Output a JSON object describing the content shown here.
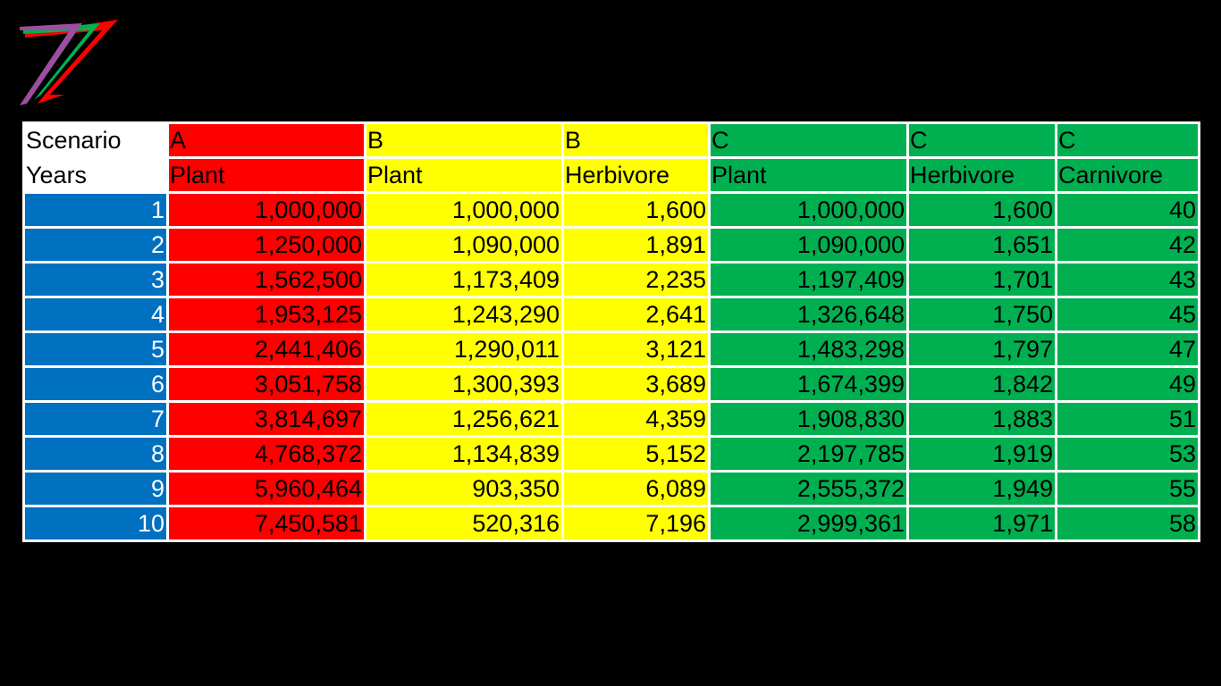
{
  "colors": {
    "year": "#0070c0",
    "A": "#ff0000",
    "B": "#ffff00",
    "C": "#00b050",
    "logo_red": "#ff0000",
    "logo_green": "#00b050",
    "logo_purple": "#9b4fa0"
  },
  "table": {
    "scenario_label": "Scenario",
    "years_label": "Years",
    "columns": [
      {
        "scenario": "A",
        "type": "Plant",
        "color": "#ff0000"
      },
      {
        "scenario": "B",
        "type": "Plant",
        "color": "#ffff00"
      },
      {
        "scenario": "B",
        "type": "Herbivore",
        "color": "#ffff00"
      },
      {
        "scenario": "C",
        "type": "Plant",
        "color": "#00b050"
      },
      {
        "scenario": "C",
        "type": "Herbivore",
        "color": "#00b050"
      },
      {
        "scenario": "C",
        "type": "Carnivore",
        "color": "#00b050"
      }
    ],
    "rows": [
      {
        "year": "1",
        "values": [
          "1,000,000",
          "1,000,000",
          "1,600",
          "1,000,000",
          "1,600",
          "40"
        ]
      },
      {
        "year": "2",
        "values": [
          "1,250,000",
          "1,090,000",
          "1,891",
          "1,090,000",
          "1,651",
          "42"
        ]
      },
      {
        "year": "3",
        "values": [
          "1,562,500",
          "1,173,409",
          "2,235",
          "1,197,409",
          "1,701",
          "43"
        ]
      },
      {
        "year": "4",
        "values": [
          "1,953,125",
          "1,243,290",
          "2,641",
          "1,326,648",
          "1,750",
          "45"
        ]
      },
      {
        "year": "5",
        "values": [
          "2,441,406",
          "1,290,011",
          "3,121",
          "1,483,298",
          "1,797",
          "47"
        ]
      },
      {
        "year": "6",
        "values": [
          "3,051,758",
          "1,300,393",
          "3,689",
          "1,674,399",
          "1,842",
          "49"
        ]
      },
      {
        "year": "7",
        "values": [
          "3,814,697",
          "1,256,621",
          "4,359",
          "1,908,830",
          "1,883",
          "51"
        ]
      },
      {
        "year": "8",
        "values": [
          "4,768,372",
          "1,134,839",
          "5,152",
          "2,197,785",
          "1,919",
          "53"
        ]
      },
      {
        "year": "9",
        "values": [
          "5,960,464",
          "903,350",
          "6,089",
          "2,555,372",
          "1,949",
          "55"
        ]
      },
      {
        "year": "10",
        "values": [
          "7,450,581",
          "520,316",
          "7,196",
          "2,999,361",
          "1,971",
          "58"
        ]
      }
    ]
  }
}
